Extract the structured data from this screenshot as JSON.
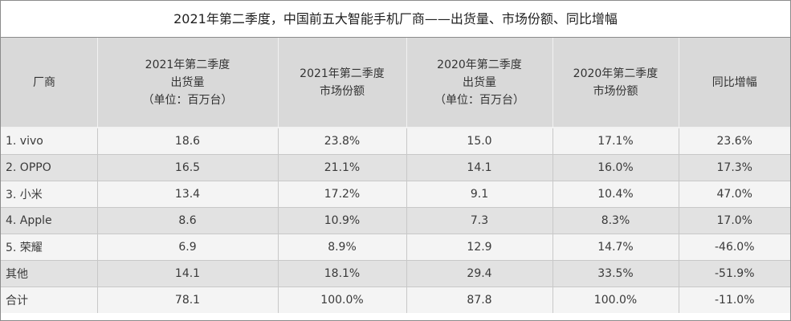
{
  "title": "2021年第二季度，中国前五大智能手机厂商——出货量、市场份额、同比增幅",
  "headers": [
    [
      "厂商"
    ],
    [
      "2021年第二季度",
      "出货量",
      "（单位：百万台）"
    ],
    [
      "2021年第二季度",
      "市场份额"
    ],
    [
      "2020年第二季度",
      "出货量",
      "（单位：百万台）"
    ],
    [
      "2020年第二季度",
      "市场份额"
    ],
    [
      "同比增幅"
    ]
  ],
  "rows": [
    [
      "1. vivo",
      "18.6",
      "23.8%",
      "15.0",
      "17.1%",
      "23.6%"
    ],
    [
      "2. OPPO",
      "16.5",
      "21.1%",
      "14.1",
      "16.0%",
      "17.3%"
    ],
    [
      "3. 小米",
      "13.4",
      "17.2%",
      "9.1",
      "10.4%",
      "47.0%"
    ],
    [
      "4. Apple",
      "8.6",
      "10.9%",
      "7.3",
      "8.3%",
      "17.0%"
    ],
    [
      "5. 荣耀",
      "6.9",
      "8.9%",
      "12.9",
      "14.7%",
      "-46.0%"
    ],
    [
      "其他",
      "14.1",
      "18.1%",
      "29.4",
      "33.5%",
      "-51.9%"
    ],
    [
      "合计",
      "78.1",
      "100.0%",
      "87.8",
      "100.0%",
      "-11.0%"
    ]
  ]
}
